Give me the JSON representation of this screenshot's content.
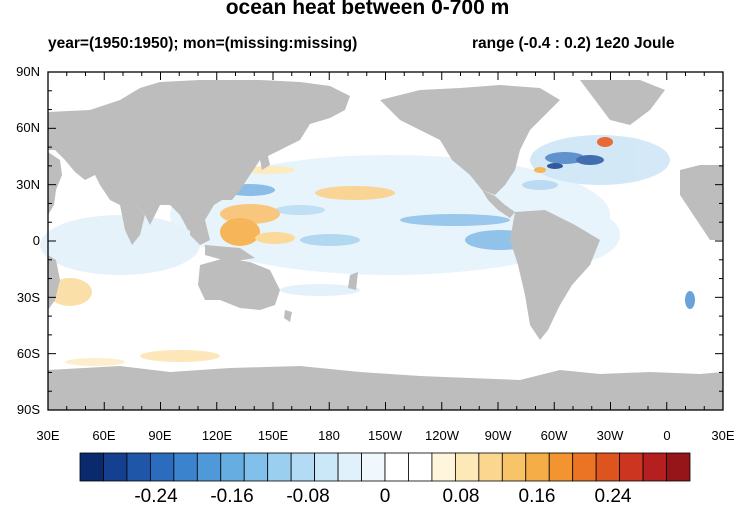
{
  "title": "ocean heat between 0-700 m",
  "subtitle_left": "year=(1950:1950); mon=(missing:missing)",
  "subtitle_right": "range (-0.4 : 0.2) 1e20 Joule",
  "lat_labels": [
    "90N",
    "60N",
    "30N",
    "0",
    "30S",
    "60S",
    "90S"
  ],
  "lon_labels": [
    "30E",
    "60E",
    "90E",
    "120E",
    "150E",
    "180",
    "150W",
    "120W",
    "90W",
    "60W",
    "30W",
    "0",
    "30E"
  ],
  "colorbar": {
    "labels": [
      "-0.24",
      "-0.16",
      "-0.08",
      "0",
      "0.08",
      "0.16",
      "0.24"
    ],
    "colors": [
      "#0b2a6e",
      "#15408f",
      "#1f56a8",
      "#2b6cbe",
      "#3b83cd",
      "#4f99d9",
      "#66aee2",
      "#80c0ea",
      "#9acff0",
      "#b3dcf4",
      "#cbe8f8",
      "#e0f1fb",
      "#f0f8fd",
      "#ffffff",
      "#ffffff",
      "#fff5dc",
      "#fde8b8",
      "#fbd68e",
      "#f8c468",
      "#f5ae47",
      "#f29430",
      "#ea7424",
      "#de541f",
      "#cc3520",
      "#b51f20",
      "#951519"
    ]
  },
  "colors": {
    "land": "#bdbdbd",
    "ocean": "#ffffff"
  }
}
